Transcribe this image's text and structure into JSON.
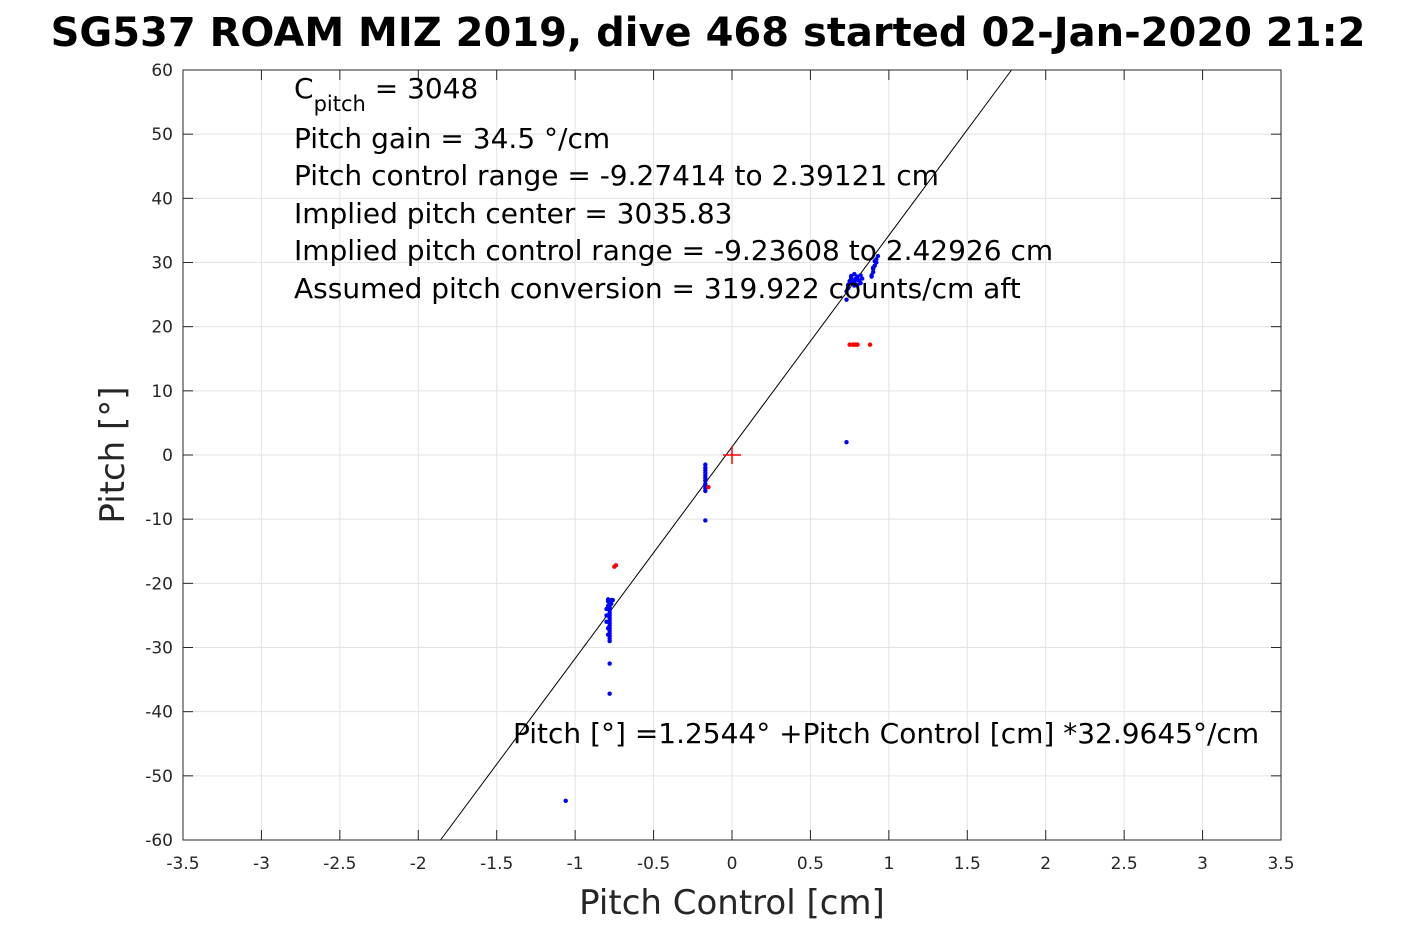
{
  "chart_data": {
    "type": "scatter",
    "title": "SG537 ROAM MIZ 2019, dive 468 started 02-Jan-2020 21:2",
    "xlabel": "Pitch Control [cm]",
    "ylabel": "Pitch [°]",
    "xlim": [
      -3.5,
      3.5
    ],
    "ylim": [
      -60,
      60
    ],
    "x_ticks": [
      -3.5,
      -3,
      -2.5,
      -2,
      -1.5,
      -1,
      -0.5,
      0,
      0.5,
      1,
      1.5,
      2,
      2.5,
      3,
      3.5
    ],
    "x_tick_labels": [
      "-3.5",
      "-3",
      "-2.5",
      "-2",
      "-1.5",
      "-1",
      "-0.5",
      "0",
      "0.5",
      "1",
      "1.5",
      "2",
      "2.5",
      "3",
      "3.5"
    ],
    "y_ticks": [
      -60,
      -50,
      -40,
      -30,
      -20,
      -10,
      0,
      10,
      20,
      30,
      40,
      50,
      60
    ],
    "y_tick_labels": [
      "-60",
      "-50",
      "-40",
      "-30",
      "-20",
      "-10",
      "0",
      "10",
      "20",
      "30",
      "40",
      "50",
      "60"
    ],
    "grid": true,
    "colors": {
      "used_points": "#0000ff",
      "excluded_points": "#ff0000",
      "fit_line": "#000000",
      "center_marker": "#ff0000",
      "grid": "#e3e3e3",
      "axes": "#262626"
    },
    "annotations": {
      "c_pitch_label": "C",
      "c_pitch_subscript": "pitch",
      "c_pitch_value": " = 3048",
      "pitch_gain": "Pitch gain = 34.5 °/cm",
      "pitch_control_range": "Pitch control range = -9.27414 to 2.39121 cm",
      "implied_pitch_center": "Implied pitch center = 3035.83",
      "implied_pitch_control_range": "Implied pitch control range = -9.23608 to 2.42926 cm",
      "assumed_pitch_conversion": "Assumed pitch conversion = 319.922 counts/cm aft",
      "fit_equation": "Pitch [°] =1.2544° +Pitch Control [cm] *32.9645°/cm"
    },
    "fit_line": {
      "intercept": 1.2544,
      "slope": 32.9645
    },
    "center_marker": {
      "x": 0,
      "y": 0
    },
    "series": [
      {
        "role": "used",
        "x": [
          -1.06,
          -0.78,
          -0.78,
          -0.78,
          -0.78,
          -0.78,
          -0.78,
          -0.78,
          -0.78,
          -0.78,
          -0.78,
          -0.78,
          -0.78,
          -0.78,
          -0.78,
          -0.78,
          -0.78,
          -0.78,
          -0.78,
          -0.77,
          -0.8,
          -0.8,
          -0.8,
          -0.79,
          -0.79,
          -0.79,
          -0.79,
          -0.79,
          -0.76,
          -0.77,
          -0.17,
          -0.17,
          -0.17,
          -0.17,
          -0.17,
          -0.17,
          -0.17,
          -0.17,
          -0.17,
          -0.17,
          -0.17,
          -0.17,
          0.73,
          0.73,
          0.73,
          0.74,
          0.74,
          0.75,
          0.75,
          0.76,
          0.76,
          0.77,
          0.77,
          0.78,
          0.78,
          0.79,
          0.8,
          0.81,
          0.82,
          0.83,
          0.82,
          0.8,
          0.79,
          0.76,
          0.78,
          0.89,
          0.9,
          0.9,
          0.91,
          0.92,
          0.92,
          0.93,
          0.89,
          0.9,
          0.91
        ],
        "y": [
          -53.9,
          -37.2,
          -32.5,
          -29,
          -28.6,
          -28.2,
          -27.8,
          -27.4,
          -27,
          -26.6,
          -26.2,
          -25.8,
          -25.4,
          -25,
          -24.6,
          -24.2,
          -23.8,
          -23.4,
          -23,
          -22.6,
          -24,
          -25,
          -26,
          -27,
          -28,
          -23.5,
          -22.8,
          -22.5,
          -22.6,
          -23.2,
          -10.2,
          -5.6,
          -5.2,
          -4.8,
          -4.5,
          -4,
          -3.6,
          -3.2,
          -2.8,
          -2.4,
          -2,
          -1.5,
          2,
          24.2,
          25.5,
          26,
          26.5,
          26.8,
          27.1,
          27.4,
          27.7,
          27.2,
          26.8,
          26.4,
          27,
          27.5,
          27.8,
          27.2,
          26.8,
          27.5,
          28,
          26.5,
          27.2,
          27.9,
          28.2,
          27.8,
          28.5,
          29,
          29.5,
          30,
          30.5,
          31,
          28,
          29.2,
          30.2
        ]
      },
      {
        "role": "excluded",
        "x": [
          -0.75,
          -0.74,
          -0.15,
          0.75,
          0.77,
          0.78,
          0.79,
          0.8,
          0.88
        ],
        "y": [
          -17.4,
          -17.2,
          -5,
          17.2,
          17.2,
          17.2,
          17.2,
          17.2,
          17.2
        ]
      }
    ]
  }
}
